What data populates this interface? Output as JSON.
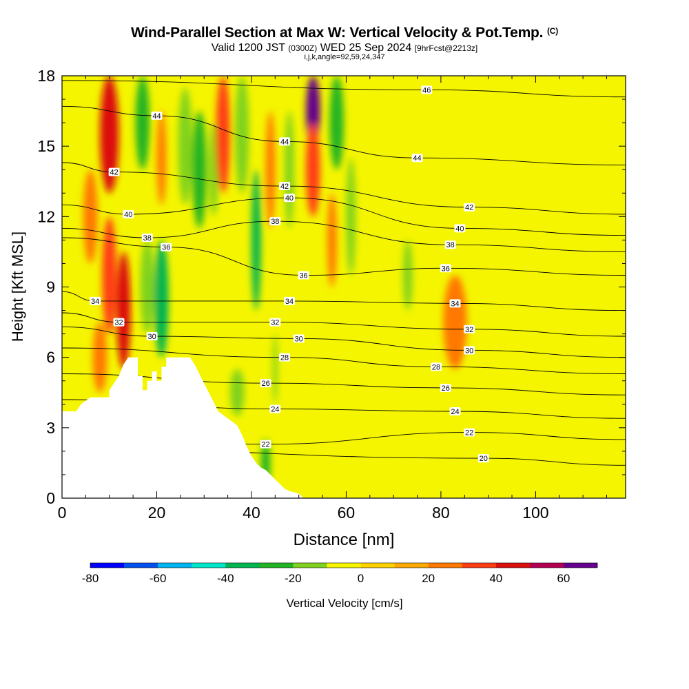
{
  "title": {
    "main": "Wind-Parallel Section at Max W: Vertical Velocity & Pot.Temp.",
    "copyright": "(C)",
    "valid_prefix": "Valid 1200 JST",
    "valid_utc": "(0300Z)",
    "valid_date": "WED 25 Sep 2024",
    "forecast": "[9hrFcst@2213z]",
    "indices": "i,j,k,angle=92,59,24,347"
  },
  "chart_data": {
    "type": "heatmap",
    "xlabel": "Distance [nm]",
    "ylabel": "Height [Kft MSL]",
    "xlim": [
      0,
      119
    ],
    "ylim": [
      0,
      18
    ],
    "x_ticks": [
      0,
      20,
      40,
      60,
      80,
      100
    ],
    "y_ticks": [
      0,
      3,
      6,
      9,
      12,
      15,
      18
    ],
    "colorbar": {
      "label": "Vertical Velocity [cm/s]",
      "range": [
        -80,
        70
      ],
      "tick_values": [
        -80,
        -60,
        -40,
        -20,
        0,
        20,
        40,
        60
      ],
      "colors": [
        "#0000ff",
        "#0050f0",
        "#00b4f0",
        "#00e6c8",
        "#00b450",
        "#22b422",
        "#80d21e",
        "#f5f500",
        "#ffd200",
        "#ffaa00",
        "#ff7800",
        "#ff3c14",
        "#dc0f0f",
        "#b40050",
        "#64008c"
      ]
    },
    "terrain_profile": [
      [
        0,
        3.7
      ],
      [
        3,
        3.7
      ],
      [
        4,
        4.0
      ],
      [
        6,
        4.3
      ],
      [
        10,
        4.3
      ],
      [
        10,
        4.6
      ],
      [
        12,
        5.2
      ],
      [
        13,
        5.7
      ],
      [
        14,
        6.0
      ],
      [
        16,
        6.0
      ],
      [
        16,
        5.2
      ],
      [
        17,
        5.2
      ],
      [
        17,
        4.6
      ],
      [
        18,
        4.6
      ],
      [
        18,
        5.0
      ],
      [
        19,
        5.0
      ],
      [
        19,
        5.4
      ],
      [
        20,
        5.4
      ],
      [
        20,
        5.0
      ],
      [
        21,
        5.0
      ],
      [
        21,
        5.6
      ],
      [
        22,
        5.6
      ],
      [
        22,
        6.0
      ],
      [
        27,
        6.0
      ],
      [
        28,
        5.7
      ],
      [
        29,
        5.3
      ],
      [
        30,
        4.9
      ],
      [
        31,
        4.5
      ],
      [
        32,
        4.1
      ],
      [
        33,
        3.7
      ],
      [
        35,
        3.4
      ],
      [
        37,
        3.1
      ],
      [
        38,
        2.7
      ],
      [
        39,
        2.2
      ],
      [
        40,
        1.8
      ],
      [
        41,
        1.5
      ],
      [
        42,
        1.3
      ],
      [
        43,
        1.2
      ],
      [
        44,
        1.0
      ],
      [
        45,
        0.8
      ],
      [
        46,
        0.6
      ],
      [
        47,
        0.4
      ],
      [
        48,
        0.3
      ],
      [
        50,
        0.2
      ],
      [
        51,
        0.0
      ]
    ],
    "theta_labels": [
      {
        "value": "46",
        "x": 77,
        "y": 17.4
      },
      {
        "value": "44",
        "x": 20,
        "y": 16.3
      },
      {
        "value": "44",
        "x": 47,
        "y": 15.2
      },
      {
        "value": "44",
        "x": 75,
        "y": 14.5
      },
      {
        "value": "42",
        "x": 11,
        "y": 13.9
      },
      {
        "value": "42",
        "x": 47,
        "y": 13.3
      },
      {
        "value": "42",
        "x": 86,
        "y": 12.4
      },
      {
        "value": "40",
        "x": 14,
        "y": 12.1
      },
      {
        "value": "40",
        "x": 48,
        "y": 12.8
      },
      {
        "value": "40",
        "x": 84,
        "y": 11.5
      },
      {
        "value": "38",
        "x": 18,
        "y": 11.1
      },
      {
        "value": "38",
        "x": 45,
        "y": 11.8
      },
      {
        "value": "38",
        "x": 82,
        "y": 10.8
      },
      {
        "value": "36",
        "x": 22,
        "y": 10.7
      },
      {
        "value": "36",
        "x": 51,
        "y": 9.5
      },
      {
        "value": "36",
        "x": 81,
        "y": 9.8
      },
      {
        "value": "34",
        "x": 7,
        "y": 8.4
      },
      {
        "value": "34",
        "x": 48,
        "y": 8.4
      },
      {
        "value": "34",
        "x": 83,
        "y": 8.3
      },
      {
        "value": "32",
        "x": 12,
        "y": 7.5
      },
      {
        "value": "32",
        "x": 45,
        "y": 7.5
      },
      {
        "value": "32",
        "x": 86,
        "y": 7.2
      },
      {
        "value": "30",
        "x": 19,
        "y": 6.9
      },
      {
        "value": "30",
        "x": 50,
        "y": 6.8
      },
      {
        "value": "30",
        "x": 86,
        "y": 6.3
      },
      {
        "value": "28",
        "x": 47,
        "y": 6.0
      },
      {
        "value": "28",
        "x": 79,
        "y": 5.6
      },
      {
        "value": "26",
        "x": 43,
        "y": 4.9
      },
      {
        "value": "26",
        "x": 81,
        "y": 4.7
      },
      {
        "value": "24",
        "x": 45,
        "y": 3.8
      },
      {
        "value": "24",
        "x": 83,
        "y": 3.7
      },
      {
        "value": "22",
        "x": 43,
        "y": 2.3
      },
      {
        "value": "22",
        "x": 86,
        "y": 2.8
      },
      {
        "value": "20",
        "x": 89,
        "y": 1.7
      }
    ],
    "velocity_cells": [
      {
        "x": 10,
        "y": 15.5,
        "w": 4,
        "h": 5,
        "value": 40
      },
      {
        "x": 10,
        "y": 9.5,
        "w": 3,
        "h": 5,
        "value": 30
      },
      {
        "x": 13,
        "y": 8.0,
        "w": 3,
        "h": 5,
        "value": 40
      },
      {
        "x": 8,
        "y": 6.0,
        "w": 3,
        "h": 3,
        "value": 20
      },
      {
        "x": 6,
        "y": 12.0,
        "w": 3,
        "h": 4,
        "value": 20
      },
      {
        "x": 17,
        "y": 16.0,
        "w": 3,
        "h": 4,
        "value": -30
      },
      {
        "x": 18,
        "y": 9.0,
        "w": 3,
        "h": 4,
        "value": -20
      },
      {
        "x": 21,
        "y": 8.5,
        "w": 3,
        "h": 5,
        "value": -40
      },
      {
        "x": 21,
        "y": 14.5,
        "w": 2,
        "h": 4,
        "value": 20
      },
      {
        "x": 26,
        "y": 15.0,
        "w": 3,
        "h": 5,
        "value": -20
      },
      {
        "x": 29,
        "y": 14.0,
        "w": 3,
        "h": 5,
        "value": -30
      },
      {
        "x": 32,
        "y": 14.0,
        "w": 2,
        "h": 4,
        "value": -20
      },
      {
        "x": 34,
        "y": 15.5,
        "w": 3,
        "h": 5,
        "value": 30
      },
      {
        "x": 38,
        "y": 15.5,
        "w": 3,
        "h": 5,
        "value": -20
      },
      {
        "x": 41,
        "y": 11.0,
        "w": 2,
        "h": 6,
        "value": -40
      },
      {
        "x": 44,
        "y": 14.0,
        "w": 2,
        "h": 5,
        "value": 20
      },
      {
        "x": 48,
        "y": 14.0,
        "w": 2,
        "h": 5,
        "value": -20
      },
      {
        "x": 53,
        "y": 16.5,
        "w": 3,
        "h": 3,
        "value": 60
      },
      {
        "x": 53,
        "y": 14.0,
        "w": 3,
        "h": 4,
        "value": 30
      },
      {
        "x": 58,
        "y": 16.0,
        "w": 3,
        "h": 4,
        "value": -30
      },
      {
        "x": 61,
        "y": 12.0,
        "w": 2,
        "h": 5,
        "value": -20
      },
      {
        "x": 57,
        "y": 11.0,
        "w": 2,
        "h": 4,
        "value": 20
      },
      {
        "x": 73,
        "y": 9.5,
        "w": 2,
        "h": 3,
        "value": -20
      },
      {
        "x": 83,
        "y": 7.5,
        "w": 5,
        "h": 4,
        "value": 20
      },
      {
        "x": 45,
        "y": 5.5,
        "w": 1,
        "h": 3,
        "value": -20
      },
      {
        "x": 43,
        "y": 1.5,
        "w": 2,
        "h": 2,
        "value": -30
      },
      {
        "x": 37,
        "y": 4.5,
        "w": 3,
        "h": 2,
        "value": -20
      }
    ]
  }
}
